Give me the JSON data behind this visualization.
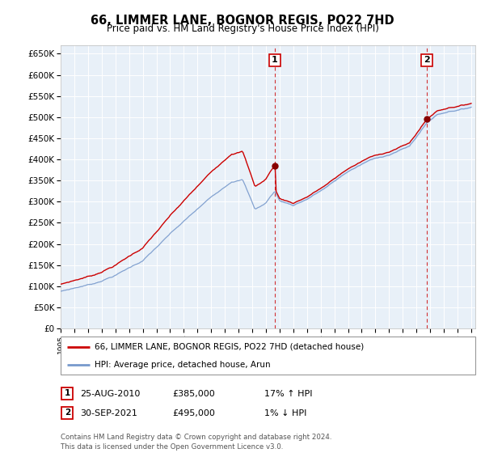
{
  "title": "66, LIMMER LANE, BOGNOR REGIS, PO22 7HD",
  "subtitle": "Price paid vs. HM Land Registry's House Price Index (HPI)",
  "legend_line1": "66, LIMMER LANE, BOGNOR REGIS, PO22 7HD (detached house)",
  "legend_line2": "HPI: Average price, detached house, Arun",
  "annotation1_date": "25-AUG-2010",
  "annotation1_price": "£385,000",
  "annotation1_hpi": "17% ↑ HPI",
  "annotation2_date": "30-SEP-2021",
  "annotation2_price": "£495,000",
  "annotation2_hpi": "1% ↓ HPI",
  "footer": "Contains HM Land Registry data © Crown copyright and database right 2024.\nThis data is licensed under the Open Government Licence v3.0.",
  "red_color": "#cc0000",
  "blue_color": "#7799cc",
  "fill_color": "#cce0ff",
  "background_color": "#e8f0f8",
  "grid_color": "#ffffff",
  "ylim": [
    0,
    670000
  ],
  "yticks": [
    0,
    50000,
    100000,
    150000,
    200000,
    250000,
    300000,
    350000,
    400000,
    450000,
    500000,
    550000,
    600000,
    650000
  ],
  "sale1_year": 2010.646,
  "sale1_price": 385000,
  "sale2_year": 2021.748,
  "sale2_price": 495000
}
